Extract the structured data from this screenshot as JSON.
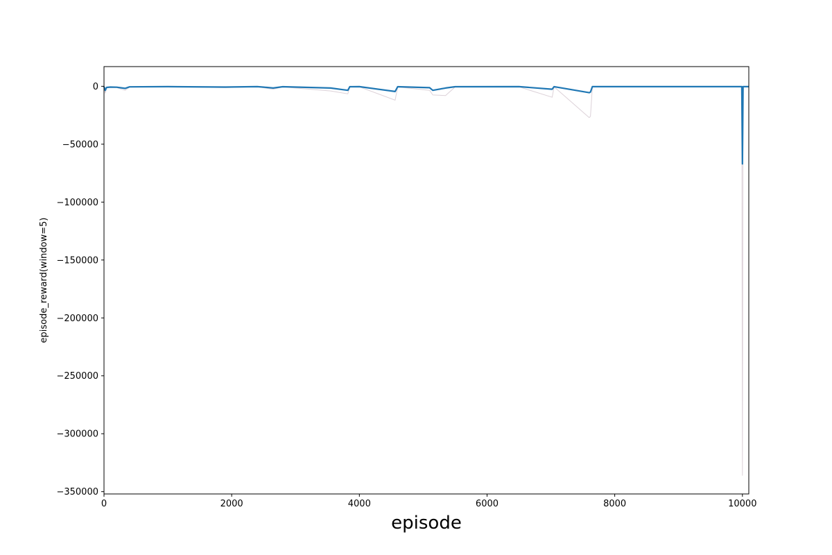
{
  "chart_data": {
    "type": "line",
    "title": "",
    "xlabel": "episode",
    "ylabel": "episode_reward(window=5)",
    "xlim": [
      0,
      10100
    ],
    "ylim": [
      -352000,
      17000
    ],
    "x_ticks": [
      0,
      2000,
      4000,
      6000,
      8000,
      10000
    ],
    "y_ticks": [
      0,
      -50000,
      -100000,
      -150000,
      -200000,
      -250000,
      -300000,
      -350000
    ],
    "x_tick_labels": [
      "0",
      "2000",
      "4000",
      "6000",
      "8000",
      "10000"
    ],
    "y_tick_labels": [
      "0",
      "−50000",
      "−100000",
      "−150000",
      "−200000",
      "−250000",
      "−300000",
      "−350000"
    ],
    "grid": false,
    "legend": "none",
    "colors": {
      "smoothed": "#1f77b4",
      "raw": "#c9b8c3"
    },
    "series": [
      {
        "role": "raw",
        "x": [
          0,
          20,
          40,
          100,
          200,
          330,
          400,
          1000,
          1900,
          2400,
          2550,
          2650,
          2800,
          3550,
          3820,
          3850,
          4000,
          4560,
          4600,
          5100,
          5150,
          5350,
          5500,
          6500,
          7020,
          7050,
          7600,
          7620,
          7650,
          8500,
          9990,
          10000,
          10010,
          10100
        ],
        "y": [
          -500,
          -6000,
          -1500,
          -1000,
          -1200,
          -3500,
          -800,
          -300,
          -1200,
          -400,
          -1800,
          -2500,
          -600,
          -4000,
          -6500,
          -700,
          -500,
          -12000,
          -600,
          -3500,
          -7500,
          -8000,
          -600,
          -500,
          -9500,
          -500,
          -27000,
          -26000,
          -500,
          -400,
          -400,
          -336000,
          -500,
          -500
        ]
      },
      {
        "role": "smoothed",
        "x": [
          0,
          20,
          40,
          100,
          200,
          330,
          400,
          1000,
          1900,
          2400,
          2550,
          2650,
          2800,
          3550,
          3820,
          3850,
          4000,
          4560,
          4600,
          5100,
          5150,
          5350,
          5500,
          6500,
          7020,
          7050,
          7600,
          7620,
          7650,
          8500,
          9990,
          10000,
          10010,
          10100
        ],
        "y": [
          -300,
          -3500,
          -1000,
          -700,
          -800,
          -1800,
          -500,
          -300,
          -700,
          -300,
          -1000,
          -1500,
          -400,
          -1500,
          -3500,
          -400,
          -300,
          -4500,
          -400,
          -1200,
          -3500,
          -1500,
          -400,
          -300,
          -2500,
          -300,
          -5500,
          -5000,
          -300,
          -300,
          -300,
          -67000,
          -300,
          -300
        ]
      }
    ]
  }
}
